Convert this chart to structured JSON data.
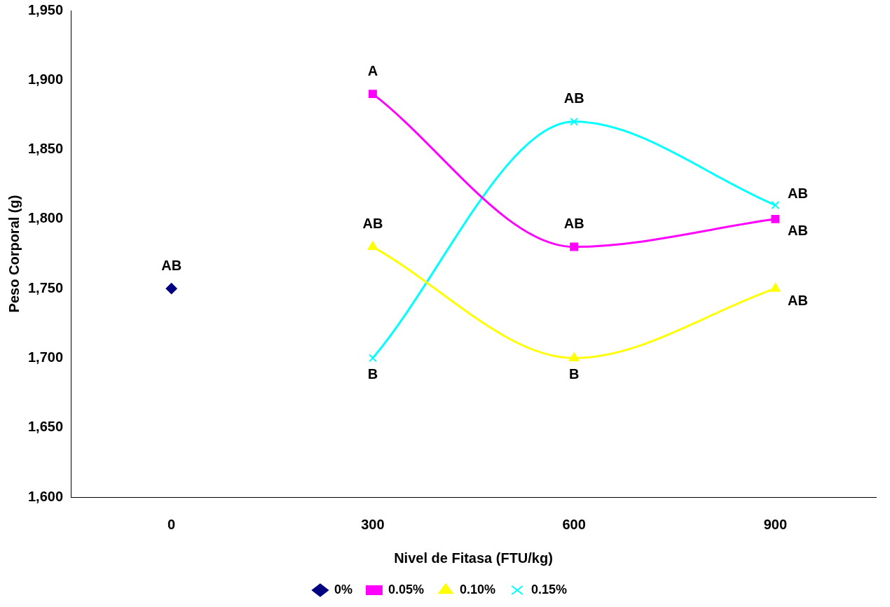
{
  "chart_data": {
    "type": "line",
    "xlabel": "Nivel de Fitasa (FTU/kg)",
    "ylabel": "Peso Corporal (g)",
    "categories": [
      "0",
      "300",
      "600",
      "900"
    ],
    "series": [
      {
        "name": "0%",
        "color": "#000080",
        "marker": "diamond",
        "values": [
          1750,
          null,
          null,
          null
        ]
      },
      {
        "name": "0.05%",
        "color": "#ff00ff",
        "marker": "square",
        "values": [
          null,
          1890,
          1780,
          1800
        ]
      },
      {
        "name": "0.10%",
        "color": "#ffff00",
        "marker": "triangle",
        "values": [
          null,
          1780,
          1700,
          1750
        ]
      },
      {
        "name": "0.15%",
        "color": "#00ffff",
        "marker": "cross",
        "values": [
          null,
          1700,
          1870,
          1810
        ]
      }
    ],
    "ylim": [
      1600,
      1950
    ],
    "yticks": [
      {
        "value": 1600,
        "label": "1,600"
      },
      {
        "value": 1650,
        "label": "1,650"
      },
      {
        "value": 1700,
        "label": "1,700"
      },
      {
        "value": 1750,
        "label": "1,750"
      },
      {
        "value": 1800,
        "label": "1,800"
      },
      {
        "value": 1850,
        "label": "1,850"
      },
      {
        "value": 1900,
        "label": "1,900"
      },
      {
        "value": 1950,
        "label": "1,950"
      }
    ],
    "grid": false,
    "legend": "bottom",
    "line_style": "solid",
    "annotations": [
      {
        "text": "AB",
        "x": "0",
        "y": 1750
      },
      {
        "text": "A",
        "x": "300",
        "y": 1890
      },
      {
        "text": "AB",
        "x": "300",
        "y": 1780
      },
      {
        "text": "B",
        "x": "300",
        "y": 1700
      },
      {
        "text": "AB",
        "x": "600",
        "y": 1870
      },
      {
        "text": "AB",
        "x": "600",
        "y": 1780
      },
      {
        "text": "B",
        "x": "600",
        "y": 1700
      },
      {
        "text": "AB",
        "x": "900",
        "y": 1810
      },
      {
        "text": "AB",
        "x": "900",
        "y": 1800
      },
      {
        "text": "AB",
        "x": "900",
        "y": 1750
      }
    ]
  }
}
